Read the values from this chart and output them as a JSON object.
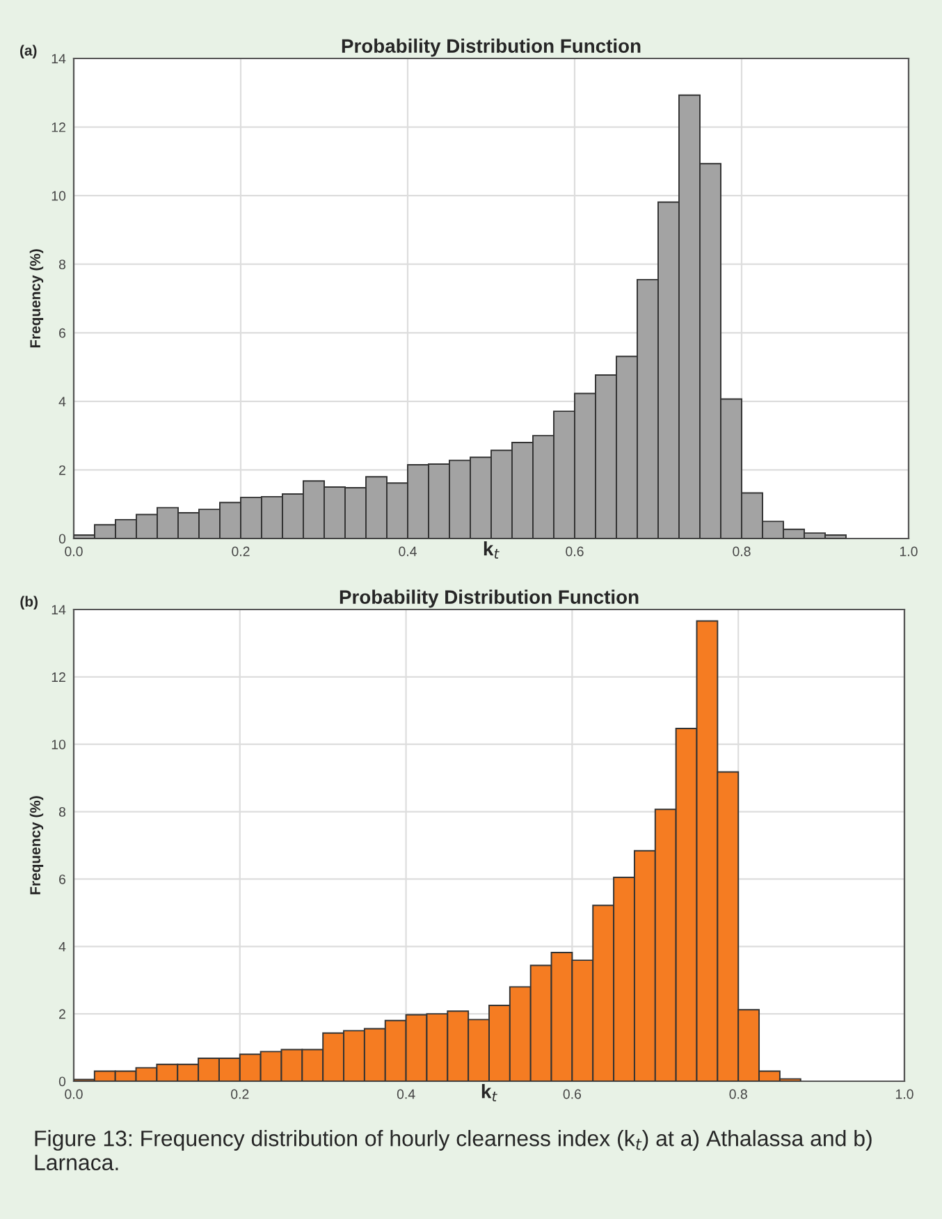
{
  "chart_data": [
    {
      "type": "histogram",
      "title": "Probability Distribution Function",
      "xlabel": "k$_{t}$",
      "ylabel": "Frequency (%)",
      "annotations": [
        "(a)"
      ],
      "color": "#a3a3a3",
      "bins": [
        0,
        0.025,
        0.05,
        0.075,
        0.1,
        0.125,
        0.15,
        0.175,
        0.2,
        0.225,
        0.25,
        0.275,
        0.3,
        0.325,
        0.35,
        0.375,
        0.4,
        0.425,
        0.45,
        0.475,
        0.5,
        0.525,
        0.55,
        0.575,
        0.6,
        0.625,
        0.65,
        0.675,
        0.7,
        0.725,
        0.75,
        0.775,
        0.8,
        0.825,
        0.85,
        0.875,
        0.9,
        0.925
      ],
      "values": [
        0.1,
        0.4,
        0.55,
        0.7,
        0.9,
        0.75,
        0.85,
        1.05,
        1.2,
        1.22,
        1.3,
        1.68,
        1.5,
        1.48,
        1.8,
        1.62,
        2.15,
        2.17,
        2.28,
        2.37,
        2.57,
        2.8,
        3.0,
        3.71,
        4.23,
        4.77,
        5.31,
        7.55,
        9.81,
        12.93,
        10.93,
        4.07,
        1.33,
        0.5,
        0.27,
        0.16,
        0.1
      ],
      "xlim": [
        0,
        1
      ],
      "ylim": [
        0,
        14
      ],
      "xticks": [
        {
          "value": 0,
          "label": "0.0"
        },
        {
          "value": 0.2,
          "label": "0.2"
        },
        {
          "value": 0.4,
          "label": "0.4"
        },
        {
          "value": 0.6,
          "label": "0.6"
        },
        {
          "value": 0.8,
          "label": "0.8"
        },
        {
          "value": 1,
          "label": "1.0"
        }
      ],
      "yticks": [
        0,
        2,
        4,
        6,
        8,
        10,
        12,
        14
      ],
      "grid": true
    },
    {
      "type": "histogram",
      "title": "Probability Distribution Function",
      "xlabel": "k$_{t}$",
      "ylabel": "Frequency (%)",
      "annotations": [
        "(b)",
        "Figure 13: Frequency distribution of hourly clearness index (k$_{t}$) at a) Athalassa and b) Larnaca."
      ],
      "color": "#f57c22",
      "bins": [
        0,
        0.025,
        0.05,
        0.075,
        0.1,
        0.125,
        0.15,
        0.175,
        0.2,
        0.225,
        0.25,
        0.275,
        0.3,
        0.325,
        0.35,
        0.375,
        0.4,
        0.425,
        0.45,
        0.475,
        0.5,
        0.525,
        0.55,
        0.575,
        0.6,
        0.625,
        0.65,
        0.675,
        0.7,
        0.725,
        0.75,
        0.775,
        0.8,
        0.825,
        0.85,
        0.875
      ],
      "values": [
        0.05,
        0.3,
        0.3,
        0.4,
        0.5,
        0.5,
        0.68,
        0.68,
        0.8,
        0.88,
        0.94,
        0.94,
        1.43,
        1.5,
        1.56,
        1.8,
        1.97,
        2.0,
        2.08,
        1.83,
        2.25,
        2.8,
        3.44,
        3.82,
        3.59,
        5.22,
        6.05,
        6.84,
        8.07,
        10.47,
        13.66,
        9.18,
        2.12,
        0.3,
        0.07
      ],
      "xlim": [
        0,
        1
      ],
      "ylim": [
        0,
        14
      ],
      "xticks": [
        {
          "value": 0,
          "label": "0.0"
        },
        {
          "value": 0.2,
          "label": "0.2"
        },
        {
          "value": 0.4,
          "label": "0.4"
        },
        {
          "value": 0.6,
          "label": "0.6"
        },
        {
          "value": 0.8,
          "label": "0.8"
        },
        {
          "value": 1,
          "label": "1.0"
        }
      ],
      "yticks": [
        0,
        2,
        4,
        6,
        8,
        10,
        12,
        14
      ],
      "grid": true
    }
  ]
}
